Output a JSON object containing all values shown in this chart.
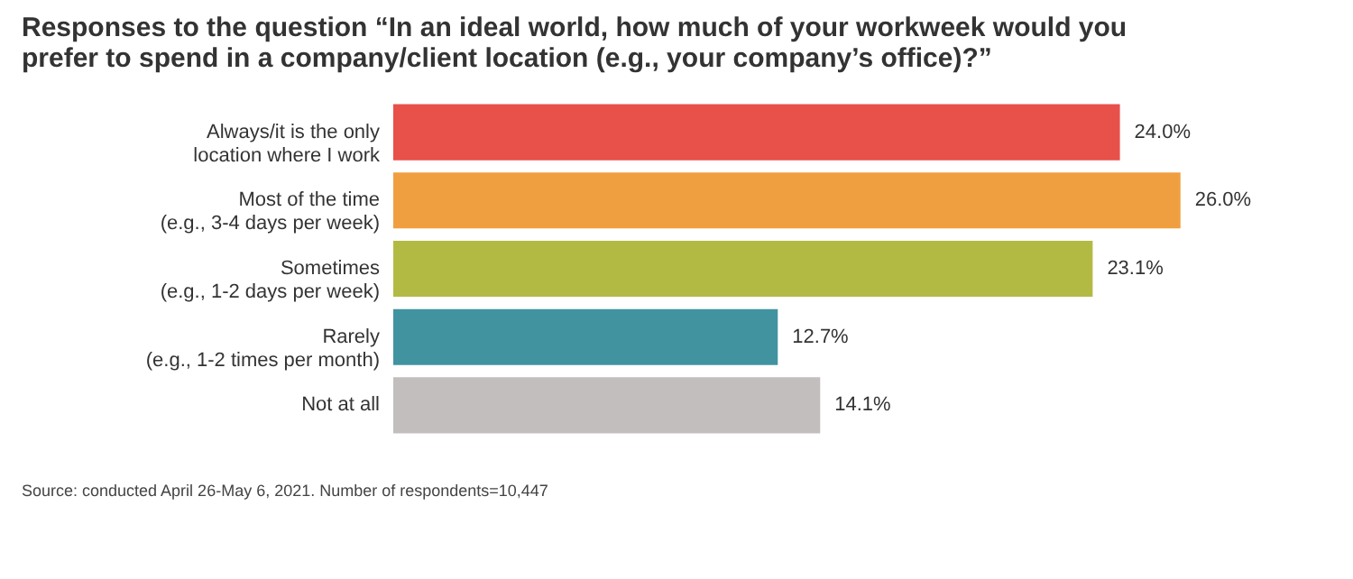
{
  "chart_data": {
    "type": "bar",
    "orientation": "horizontal",
    "title": "Responses to the question “In an ideal world, how much of your workweek would you\nprefer to spend in a company/client location (e.g., your company’s office)?”",
    "categories": [
      "Always/it is the only\nlocation where I work",
      "Most of the time\n(e.g., 3-4 days per week)",
      "Sometimes\n(e.g., 1-2 days per week)",
      "Rarely\n(e.g., 1-2 times per month)",
      "Not at all"
    ],
    "values": [
      24.0,
      26.0,
      23.1,
      12.7,
      14.1
    ],
    "colors": [
      "#e8504a",
      "#f09f40",
      "#b3ba44",
      "#40939f",
      "#c3bebe"
    ],
    "value_labels": [
      "24.0%",
      "26.0%",
      "23.1%",
      "12.7%",
      "14.1%"
    ],
    "annotations": [
      "Source: conducted April 26-May 6, 2021. Number of respondents=10,447"
    ],
    "grid": false
  }
}
